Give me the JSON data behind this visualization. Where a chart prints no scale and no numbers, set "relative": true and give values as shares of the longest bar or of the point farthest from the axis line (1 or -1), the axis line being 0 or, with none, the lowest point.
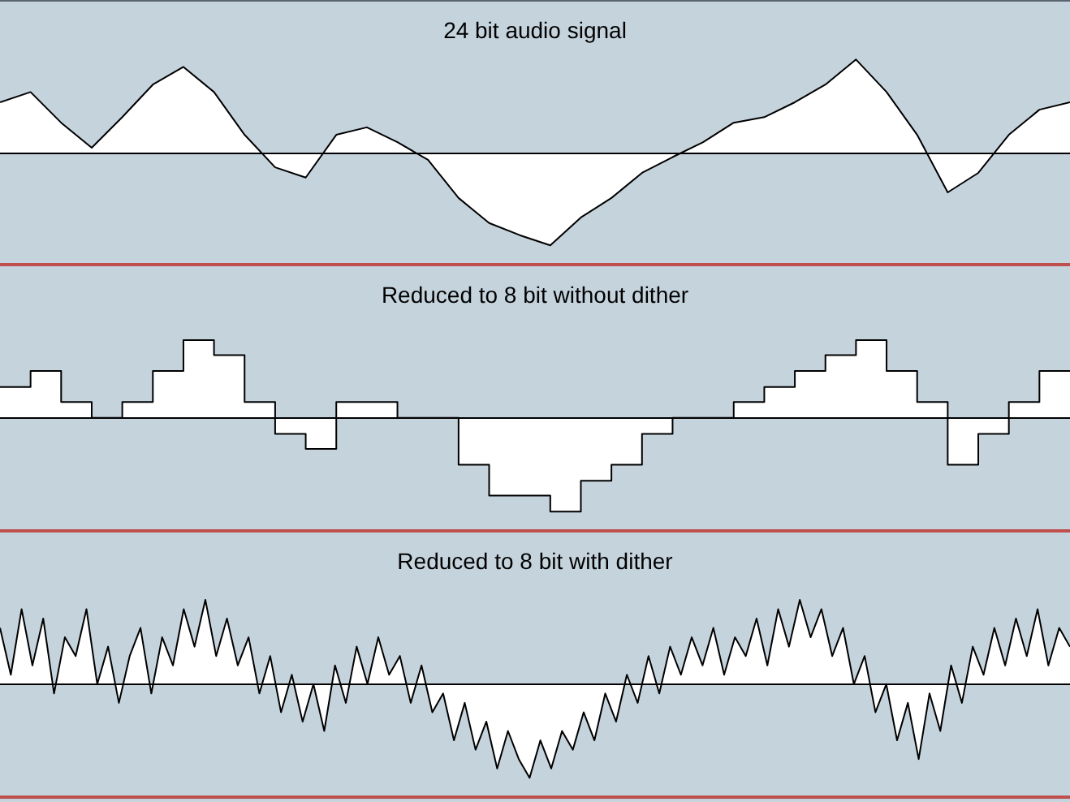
{
  "chart_data": [
    {
      "type": "area",
      "title": "24 bit audio signal",
      "relative": true,
      "legend": false,
      "categories": [
        null,
        null,
        null,
        null,
        null,
        null,
        null,
        null,
        null,
        null,
        null,
        null,
        null,
        null,
        null,
        null,
        null,
        null,
        null,
        null,
        null,
        null,
        null,
        null,
        null,
        null,
        null,
        null,
        null,
        null,
        null,
        null,
        null,
        null,
        null,
        null
      ],
      "series": [
        {
          "color": "#000000",
          "values": [
            0.54,
            0.65,
            0.32,
            0.05,
            0.38,
            0.73,
            0.92,
            0.65,
            0.19,
            -0.16,
            -0.27,
            0.19,
            0.27,
            0.11,
            -0.08,
            -0.49,
            -0.76,
            -0.89,
            -1,
            -0.7,
            -0.49,
            -0.22,
            -0.05,
            0.11,
            0.32,
            0.38,
            0.54,
            0.73,
            1,
            0.65,
            0.19,
            -0.43,
            -0.22,
            0.19,
            0.46,
            0.54
          ]
        }
      ]
    },
    {
      "type": "step",
      "title": "Reduced to 8 bit without dither",
      "relative": true,
      "legend": false,
      "categories": [
        null,
        null,
        null,
        null,
        null,
        null,
        null,
        null,
        null,
        null,
        null,
        null,
        null,
        null,
        null,
        null,
        null,
        null,
        null,
        null,
        null,
        null,
        null,
        null,
        null,
        null,
        null,
        null,
        null,
        null,
        null,
        null,
        null,
        null,
        null,
        null
      ],
      "series": [
        {
          "color": "#000000",
          "values": [
            0.33,
            0.5,
            0.17,
            0,
            0.17,
            0.5,
            0.83,
            0.67,
            0.17,
            -0.17,
            -0.33,
            0.17,
            0.17,
            0,
            0,
            -0.5,
            -0.83,
            -0.83,
            -1,
            -0.67,
            -0.5,
            -0.17,
            0,
            0,
            0.17,
            0.33,
            0.5,
            0.67,
            0.83,
            0.5,
            0.17,
            -0.5,
            -0.17,
            0.17,
            0.5,
            0.5
          ]
        }
      ]
    },
    {
      "type": "area",
      "title": "Reduced to 8 bit with dither",
      "relative": true,
      "legend": false,
      "categories": [
        null,
        null,
        null,
        null,
        null,
        null,
        null,
        null,
        null,
        null,
        null,
        null,
        null,
        null,
        null,
        null,
        null,
        null,
        null,
        null,
        null,
        null,
        null,
        null,
        null,
        null,
        null,
        null,
        null,
        null,
        null,
        null,
        null,
        null,
        null,
        null,
        null,
        null,
        null,
        null,
        null,
        null,
        null,
        null,
        null,
        null,
        null,
        null,
        null,
        null,
        null,
        null,
        null,
        null,
        null,
        null,
        null,
        null,
        null,
        null,
        null,
        null,
        null,
        null,
        null,
        null,
        null,
        null,
        null,
        null,
        null,
        null,
        null,
        null,
        null,
        null,
        null,
        null,
        null,
        null,
        null,
        null,
        null,
        null,
        null,
        null,
        null,
        null,
        null,
        null,
        null,
        null,
        null,
        null,
        null,
        null,
        null,
        null,
        null,
        null
      ],
      "series": [
        {
          "color": "#000000",
          "values": [
            0.6,
            0.1,
            0.8,
            0.2,
            0.7,
            -0.1,
            0.5,
            0.3,
            0.8,
            0.0,
            0.4,
            -0.2,
            0.3,
            0.6,
            -0.1,
            0.5,
            0.2,
            0.8,
            0.4,
            0.9,
            0.3,
            0.7,
            0.2,
            0.5,
            -0.1,
            0.3,
            -0.3,
            0.1,
            -0.4,
            0.0,
            -0.5,
            0.2,
            -0.2,
            0.4,
            0.0,
            0.5,
            0.1,
            0.3,
            -0.2,
            0.2,
            -0.3,
            -0.1,
            -0.6,
            -0.2,
            -0.7,
            -0.4,
            -0.9,
            -0.5,
            -0.8,
            -1,
            -0.6,
            -0.9,
            -0.5,
            -0.7,
            -0.3,
            -0.6,
            -0.1,
            -0.4,
            0.1,
            -0.2,
            0.3,
            -0.1,
            0.4,
            0.1,
            0.5,
            0.2,
            0.6,
            0.1,
            0.5,
            0.3,
            0.7,
            0.2,
            0.8,
            0.4,
            0.9,
            0.5,
            0.8,
            0.3,
            0.6,
            0.0,
            0.3,
            -0.3,
            0.0,
            -0.6,
            -0.2,
            -0.8,
            -0.1,
            -0.5,
            0.2,
            -0.2,
            0.4,
            0.1,
            0.6,
            0.2,
            0.7,
            0.3,
            0.8,
            0.2,
            0.6,
            0.4
          ]
        }
      ]
    }
  ]
}
